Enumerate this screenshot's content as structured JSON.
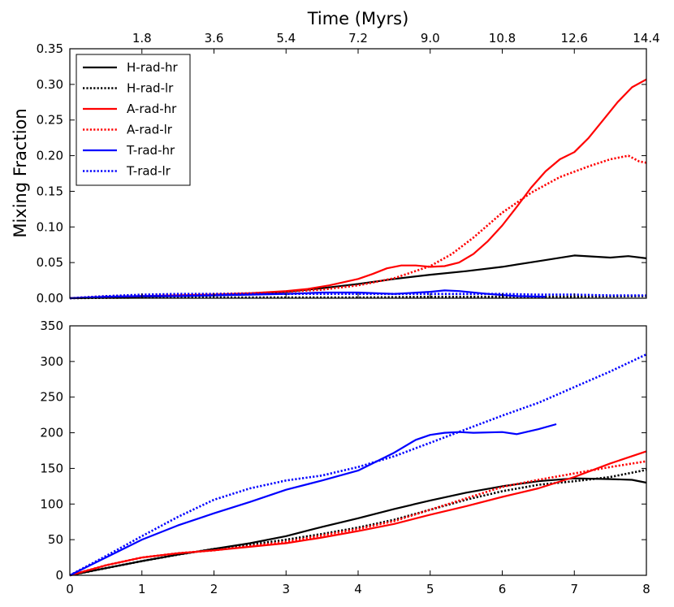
{
  "chart_data": [
    {
      "type": "line",
      "panel": "top",
      "title": "",
      "top_axis_title": "Time (Myrs)",
      "top_axis_ticks": [
        "1.8",
        "3.6",
        "5.4",
        "7.2",
        "9.0",
        "10.8",
        "12.6",
        "14.4"
      ],
      "xlabel": "",
      "ylabel": "Mixing Fraction",
      "xlim": [
        0,
        8
      ],
      "ylim": [
        0,
        0.35
      ],
      "yticks": [
        "0.00",
        "0.05",
        "0.10",
        "0.15",
        "0.20",
        "0.25",
        "0.30",
        "0.35"
      ],
      "xticks": [],
      "legend": {
        "position": "top-left",
        "entries": [
          {
            "label": "H-rad-hr",
            "color": "#000000",
            "style": "solid"
          },
          {
            "label": "H-rad-lr",
            "color": "#000000",
            "style": "dotted"
          },
          {
            "label": "A-rad-hr",
            "color": "#ff0000",
            "style": "solid"
          },
          {
            "label": "A-rad-lr",
            "color": "#ff0000",
            "style": "dotted"
          },
          {
            "label": "T-rad-hr",
            "color": "#0000ff",
            "style": "solid"
          },
          {
            "label": "T-rad-lr",
            "color": "#0000ff",
            "style": "dotted"
          }
        ]
      },
      "series": [
        {
          "name": "H-rad-hr",
          "color": "#000000",
          "style": "solid",
          "x": [
            0,
            0.5,
            1,
            1.5,
            2,
            2.5,
            3,
            3.5,
            4,
            4.5,
            5,
            5.5,
            6,
            6.5,
            7,
            7.5,
            7.75,
            8
          ],
          "y": [
            0,
            0.001,
            0.002,
            0.003,
            0.004,
            0.006,
            0.009,
            0.014,
            0.02,
            0.027,
            0.033,
            0.038,
            0.044,
            0.052,
            0.06,
            0.057,
            0.059,
            0.056
          ]
        },
        {
          "name": "H-rad-lr",
          "color": "#000000",
          "style": "dotted",
          "x": [
            0,
            1,
            2,
            3,
            4,
            5,
            6,
            7,
            8
          ],
          "y": [
            0,
            0.001,
            0.001,
            0.001,
            0.001,
            0.002,
            0.002,
            0.002,
            0.003
          ]
        },
        {
          "name": "A-rad-hr",
          "color": "#ff0000",
          "style": "solid",
          "x": [
            0,
            0.5,
            1,
            1.5,
            2,
            2.5,
            3,
            3.3,
            3.6,
            4,
            4.2,
            4.4,
            4.6,
            4.8,
            5,
            5.2,
            5.4,
            5.6,
            5.8,
            6,
            6.2,
            6.4,
            6.6,
            6.8,
            7,
            7.2,
            7.4,
            7.6,
            7.8,
            8
          ],
          "y": [
            0,
            0.002,
            0.003,
            0.004,
            0.005,
            0.007,
            0.01,
            0.013,
            0.018,
            0.027,
            0.034,
            0.042,
            0.046,
            0.046,
            0.044,
            0.045,
            0.05,
            0.062,
            0.08,
            0.102,
            0.128,
            0.155,
            0.178,
            0.195,
            0.205,
            0.225,
            0.25,
            0.275,
            0.296,
            0.307
          ]
        },
        {
          "name": "A-rad-lr",
          "color": "#ff0000",
          "style": "dotted",
          "x": [
            0,
            0.5,
            1,
            1.5,
            2,
            2.5,
            3,
            3.5,
            4,
            4.5,
            5,
            5.3,
            5.6,
            6,
            6.4,
            6.8,
            7.2,
            7.5,
            7.75,
            7.9,
            8
          ],
          "y": [
            0,
            0.003,
            0.004,
            0.005,
            0.006,
            0.007,
            0.009,
            0.012,
            0.018,
            0.028,
            0.045,
            0.062,
            0.085,
            0.12,
            0.148,
            0.17,
            0.185,
            0.195,
            0.2,
            0.192,
            0.19
          ]
        },
        {
          "name": "T-rad-hr",
          "color": "#0000ff",
          "style": "solid",
          "x": [
            0,
            0.5,
            1,
            1.5,
            2,
            2.5,
            3,
            3.5,
            4,
            4.5,
            5,
            5.2,
            5.4,
            5.8,
            6.2,
            6.6
          ],
          "y": [
            0,
            0.002,
            0.003,
            0.003,
            0.004,
            0.005,
            0.006,
            0.008,
            0.008,
            0.006,
            0.009,
            0.011,
            0.01,
            0.006,
            0.003,
            0.002
          ]
        },
        {
          "name": "T-rad-lr",
          "color": "#0000ff",
          "style": "dotted",
          "x": [
            0,
            0.5,
            1,
            1.5,
            2,
            2.5,
            3,
            3.5,
            4,
            4.5,
            5,
            5.5,
            6,
            6.5,
            7,
            7.5,
            8
          ],
          "y": [
            0,
            0.003,
            0.005,
            0.006,
            0.006,
            0.006,
            0.006,
            0.006,
            0.006,
            0.006,
            0.006,
            0.006,
            0.006,
            0.005,
            0.005,
            0.004,
            0.004
          ]
        }
      ]
    },
    {
      "type": "line",
      "panel": "bottom",
      "title": "",
      "xlabel": "",
      "ylabel": "",
      "xlim": [
        0,
        8
      ],
      "ylim": [
        0,
        350
      ],
      "xticks": [
        "0",
        "1",
        "2",
        "3",
        "4",
        "5",
        "6",
        "7",
        "8"
      ],
      "yticks": [
        "0",
        "50",
        "100",
        "150",
        "200",
        "250",
        "300",
        "350"
      ],
      "series": [
        {
          "name": "H-rad-hr",
          "color": "#000000",
          "style": "solid",
          "x": [
            0,
            0.5,
            1,
            1.5,
            2,
            2.5,
            3,
            3.5,
            4,
            4.5,
            5,
            5.5,
            6,
            6.5,
            7,
            7.5,
            7.8,
            8
          ],
          "y": [
            0,
            10,
            20,
            29,
            37,
            45,
            55,
            68,
            80,
            93,
            105,
            116,
            125,
            132,
            136,
            135,
            134,
            130
          ]
        },
        {
          "name": "H-rad-lr",
          "color": "#000000",
          "style": "dotted",
          "x": [
            0,
            0.5,
            1,
            1.5,
            2,
            2.5,
            3,
            3.5,
            4,
            4.5,
            5,
            5.5,
            6,
            6.5,
            7,
            7.5,
            8
          ],
          "y": [
            0,
            10,
            20,
            29,
            37,
            43,
            50,
            58,
            67,
            78,
            92,
            106,
            118,
            127,
            132,
            138,
            148
          ]
        },
        {
          "name": "A-rad-hr",
          "color": "#ff0000",
          "style": "solid",
          "x": [
            0,
            0.5,
            1,
            1.5,
            2,
            2.5,
            3,
            3.5,
            4,
            4.5,
            5,
            5.5,
            6,
            6.5,
            7,
            7.5,
            8
          ],
          "y": [
            0,
            14,
            25,
            31,
            35,
            40,
            45,
            53,
            62,
            72,
            85,
            97,
            110,
            122,
            138,
            157,
            174
          ]
        },
        {
          "name": "A-rad-lr",
          "color": "#ff0000",
          "style": "dotted",
          "x": [
            0,
            0.5,
            1,
            1.5,
            2,
            2.5,
            3,
            3.5,
            4,
            4.5,
            5,
            5.5,
            6,
            6.5,
            7,
            7.5,
            8
          ],
          "y": [
            0,
            14,
            25,
            31,
            35,
            41,
            47,
            56,
            65,
            76,
            92,
            108,
            124,
            134,
            143,
            152,
            160
          ]
        },
        {
          "name": "T-rad-hr",
          "color": "#0000ff",
          "style": "solid",
          "x": [
            0,
            0.5,
            1,
            1.5,
            2,
            2.5,
            3,
            3.5,
            4,
            4.5,
            4.8,
            5,
            5.2,
            5.4,
            5.6,
            6,
            6.2,
            6.5,
            6.75
          ],
          "y": [
            0,
            25,
            50,
            70,
            87,
            103,
            120,
            133,
            147,
            172,
            190,
            197,
            200,
            201,
            200,
            201,
            198,
            205,
            212
          ]
        },
        {
          "name": "T-rad-lr",
          "color": "#0000ff",
          "style": "dotted",
          "x": [
            0,
            0.5,
            1,
            1.5,
            2,
            2.5,
            3,
            3.5,
            4,
            4.5,
            5,
            5.5,
            6,
            6.5,
            7,
            7.5,
            8
          ],
          "y": [
            0,
            27,
            55,
            82,
            106,
            122,
            133,
            140,
            152,
            167,
            186,
            205,
            224,
            242,
            264,
            286,
            310
          ]
        }
      ]
    }
  ]
}
